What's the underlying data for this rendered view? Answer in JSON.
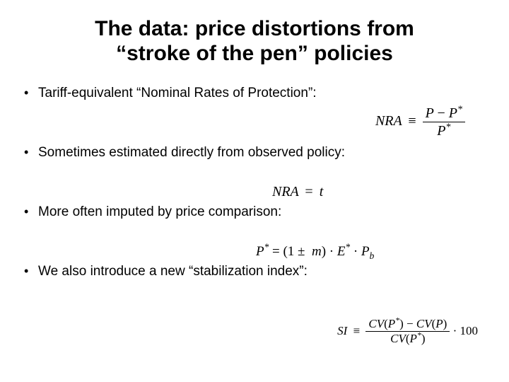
{
  "title_line1": "The data: price distortions from",
  "title_line2": "“stroke of the pen” policies",
  "bullets": [
    "Tariff-equivalent “Nominal Rates of Protection”:",
    "Sometimes estimated directly from observed policy:",
    "More often imputed by price comparison:",
    "We also introduce a new “stabilization index”:"
  ],
  "formulas": {
    "f1": {
      "lhs": "NRA",
      "rel": "≡",
      "num": "P − P*",
      "den": "P*"
    },
    "f2": {
      "lhs": "NRA",
      "rel": "=",
      "rhs": "t"
    },
    "f3": {
      "text": "P* = (1 ± m) · E* · P_b"
    },
    "f4": {
      "lhs": "SI",
      "rel": "≡",
      "num": "CV(P*) − CV(P)",
      "den": "CV(P*)",
      "tail": "· 100"
    }
  },
  "style": {
    "background_color": "#ffffff",
    "text_color": "#000000",
    "title_fontsize": 30,
    "bullet_fontsize": 19,
    "formula_fontsize": 20,
    "formula_font": "Times New Roman",
    "body_font": "Arial"
  }
}
